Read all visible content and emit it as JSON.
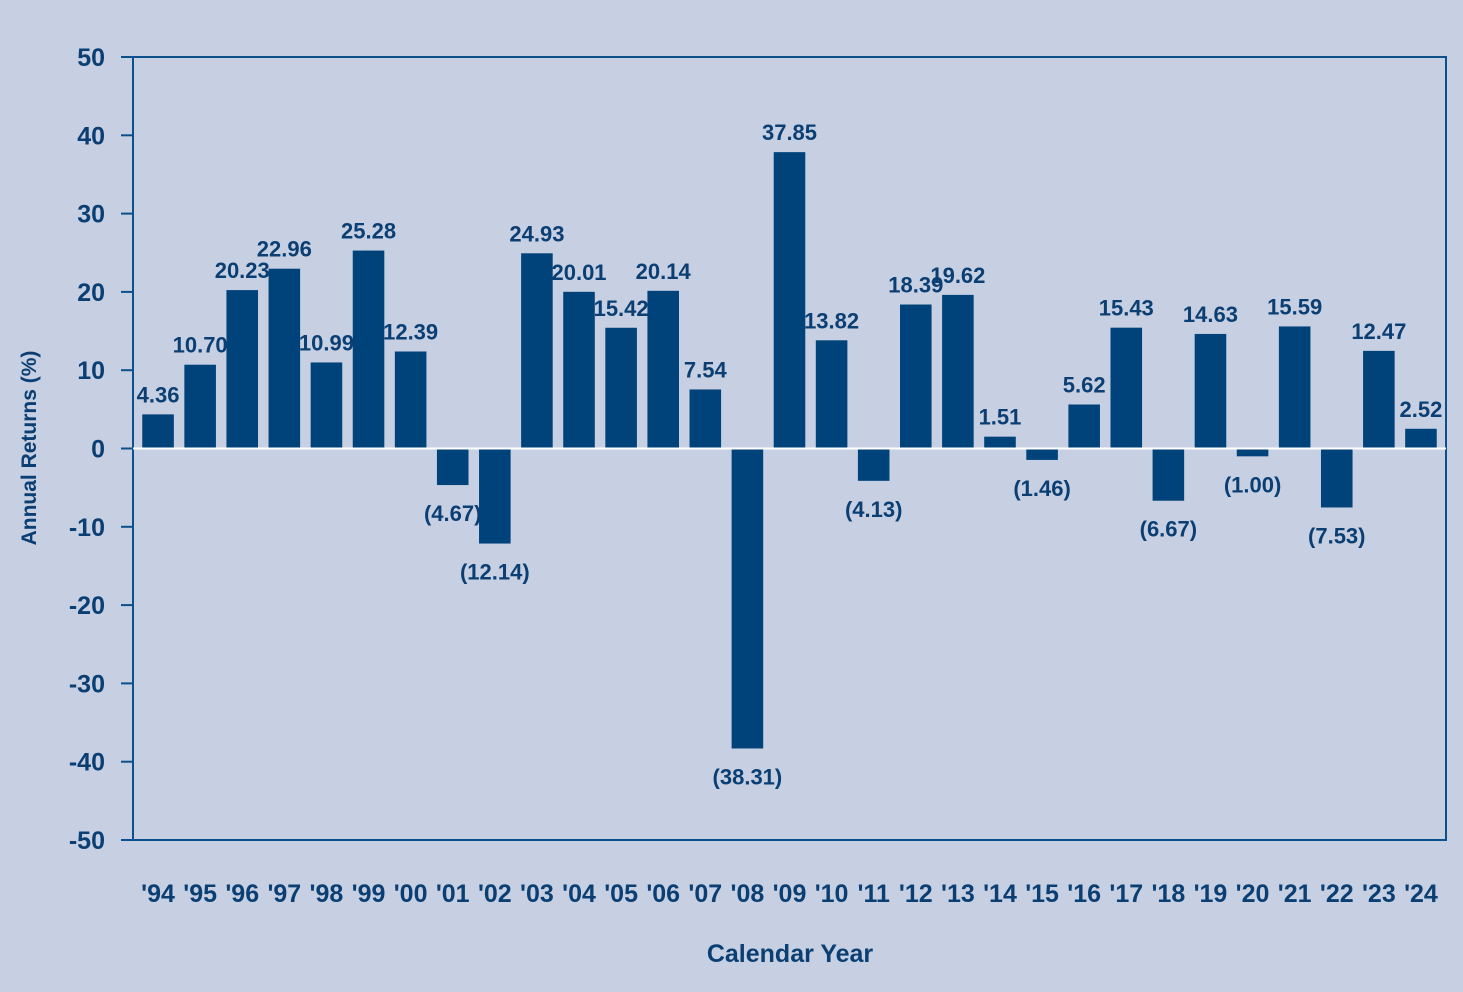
{
  "chart_data": {
    "type": "bar",
    "xlabel": "Calendar Year",
    "ylabel": "Annual Returns (%)",
    "ylim": [
      -50,
      50
    ],
    "yticks": [
      50,
      40,
      30,
      20,
      10,
      0,
      -10,
      -20,
      -30,
      -40,
      -50
    ],
    "grid": false,
    "legend": "none",
    "categories": [
      "'94",
      "'95",
      "'96",
      "'97",
      "'98",
      "'99",
      "'00",
      "'01",
      "'02",
      "'03",
      "'04",
      "'05",
      "'06",
      "'07",
      "'08",
      "'09",
      "'10",
      "'11",
      "'12",
      "'13",
      "'14",
      "'15",
      "'16",
      "'17",
      "'18",
      "'19",
      "'20",
      "'21",
      "'22",
      "'23",
      "'24"
    ],
    "values": [
      4.36,
      10.7,
      20.23,
      22.96,
      10.99,
      25.28,
      12.39,
      -4.67,
      -12.14,
      24.93,
      20.01,
      15.42,
      20.14,
      7.54,
      -38.31,
      37.85,
      13.82,
      -4.13,
      18.39,
      19.62,
      1.51,
      -1.46,
      5.62,
      15.43,
      -6.67,
      14.63,
      -1.0,
      15.59,
      -7.53,
      12.47,
      2.52
    ],
    "data_labels": [
      "4.36",
      "10.70",
      "20.23",
      "22.96",
      "10.99",
      "25.28",
      "12.39",
      "(4.67)",
      "(12.14)",
      "24.93",
      "20.01",
      "15.42",
      "20.14",
      "7.54",
      "(38.31)",
      "37.85",
      "13.82",
      "(4.13)",
      "18.39",
      "19.62",
      "1.51",
      "(1.46)",
      "5.62",
      "15.43",
      "(6.67)",
      "14.63",
      "(1.00)",
      "15.59",
      "(7.53)",
      "12.47",
      "2.52"
    ],
    "colors": {
      "background": "#c7d0e2",
      "bar": "#00427a",
      "text": "#0b3f73",
      "axis": "#0b4f8c"
    }
  }
}
